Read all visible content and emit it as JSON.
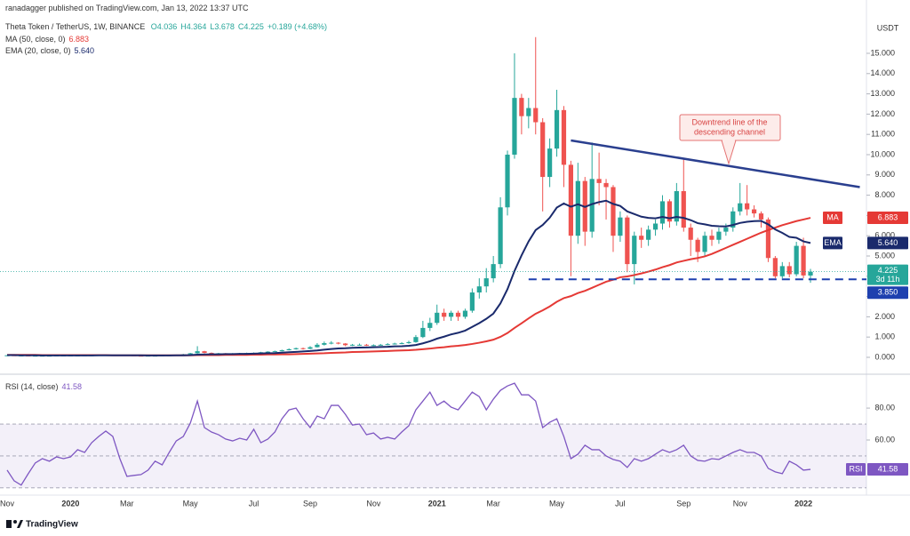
{
  "header": {
    "published": "ranadagger published on TradingView.com, Jan 13, 2022 13:37 UTC",
    "symbol": "Theta Token / TetherUS, 1W, BINANCE",
    "ohlc": [
      "O4.036",
      "H4.364",
      "L3.678",
      "C4.225",
      "+0.189 (+4.68%)"
    ]
  },
  "footer": {
    "logo": "TradingView"
  },
  "chart_data": [
    {
      "type": "candlestick",
      "unit": "USDT",
      "up_color": "#26a69a",
      "down_color": "#ef5350",
      "categories": [
        "Nov",
        null,
        null,
        null,
        null,
        null,
        null,
        null,
        null,
        "2020",
        null,
        null,
        null,
        null,
        null,
        null,
        null,
        "Mar",
        null,
        null,
        null,
        null,
        null,
        null,
        null,
        null,
        "May",
        null,
        null,
        null,
        null,
        null,
        null,
        null,
        null,
        "Jul",
        null,
        null,
        null,
        null,
        null,
        null,
        null,
        "Sep",
        null,
        null,
        null,
        null,
        null,
        null,
        null,
        null,
        "Nov",
        null,
        null,
        null,
        null,
        null,
        null,
        null,
        null,
        "2021",
        null,
        null,
        null,
        null,
        null,
        null,
        null,
        "Mar",
        null,
        null,
        null,
        null,
        null,
        null,
        null,
        null,
        "May",
        null,
        null,
        null,
        null,
        null,
        null,
        null,
        null,
        "Jul",
        null,
        null,
        null,
        null,
        null,
        null,
        null,
        null,
        "Sep",
        null,
        null,
        null,
        null,
        null,
        null,
        null,
        "Nov",
        null,
        null,
        null,
        null,
        null,
        null,
        null,
        null,
        "2022",
        null
      ],
      "candles": {
        "open": [
          0.1,
          0.1,
          0.09,
          0.09,
          0.08,
          0.08,
          0.08,
          0.08,
          0.09,
          0.09,
          0.09,
          0.09,
          0.1,
          0.1,
          0.11,
          0.12,
          0.12,
          0.11,
          0.1,
          0.08,
          0.07,
          0.08,
          0.08,
          0.09,
          0.1,
          0.12,
          0.15,
          0.2,
          0.3,
          0.22,
          0.2,
          0.2,
          0.19,
          0.19,
          0.2,
          0.21,
          0.22,
          0.25,
          0.28,
          0.3,
          0.35,
          0.4,
          0.45,
          0.42,
          0.5,
          0.62,
          0.7,
          0.72,
          0.68,
          0.6,
          0.62,
          0.62,
          0.6,
          0.6,
          0.62,
          0.65,
          0.68,
          0.7,
          0.75,
          1.0,
          1.45,
          1.7,
          2.2,
          2.0,
          2.2,
          2.0,
          2.3,
          3.2,
          3.5,
          3.9,
          4.6,
          7.4,
          10.0,
          12.8,
          11.9,
          12.3,
          11.6,
          8.9,
          10.3,
          12.2,
          9.5,
          6.0,
          8.7,
          6.2,
          8.8,
          8.6,
          8.4,
          6.0,
          6.9,
          4.6,
          6.0,
          5.8,
          6.3,
          6.6,
          7.7,
          6.7,
          8.2,
          6.4,
          5.8,
          5.2,
          6.0,
          5.8,
          6.2,
          6.4,
          7.2,
          7.6,
          7.3,
          7.1,
          6.8,
          4.9,
          4.0,
          4.5,
          4.1,
          5.5,
          4.036
        ],
        "high": [
          0.11,
          0.1,
          0.1,
          0.09,
          0.09,
          0.09,
          0.09,
          0.1,
          0.1,
          0.1,
          0.1,
          0.11,
          0.11,
          0.12,
          0.13,
          0.13,
          0.12,
          0.12,
          0.1,
          0.09,
          0.09,
          0.09,
          0.1,
          0.11,
          0.13,
          0.17,
          0.22,
          0.55,
          0.32,
          0.24,
          0.22,
          0.21,
          0.21,
          0.22,
          0.23,
          0.24,
          0.27,
          0.3,
          0.33,
          0.38,
          0.44,
          0.48,
          0.48,
          0.55,
          0.7,
          0.78,
          0.8,
          0.75,
          0.7,
          0.66,
          0.68,
          0.66,
          0.64,
          0.66,
          0.7,
          0.72,
          0.75,
          0.82,
          1.1,
          1.8,
          1.95,
          2.6,
          2.4,
          2.3,
          2.3,
          2.4,
          3.4,
          3.9,
          4.4,
          5.0,
          7.9,
          10.2,
          15.0,
          13.0,
          12.8,
          15.8,
          11.8,
          10.8,
          13.2,
          12.4,
          9.7,
          9.6,
          8.9,
          10.6,
          10.1,
          8.8,
          8.5,
          7.2,
          7.0,
          6.2,
          6.4,
          6.5,
          6.8,
          8.0,
          7.8,
          8.6,
          9.8,
          6.6,
          5.9,
          6.2,
          6.3,
          6.4,
          6.6,
          7.4,
          8.6,
          8.5,
          7.5,
          7.2,
          6.9,
          5.0,
          4.7,
          4.7,
          5.7,
          5.9,
          4.364
        ],
        "low": [
          0.09,
          0.09,
          0.08,
          0.08,
          0.07,
          0.07,
          0.07,
          0.07,
          0.08,
          0.08,
          0.08,
          0.08,
          0.09,
          0.09,
          0.1,
          0.11,
          0.1,
          0.09,
          0.07,
          0.05,
          0.06,
          0.07,
          0.07,
          0.08,
          0.09,
          0.11,
          0.14,
          0.18,
          0.2,
          0.18,
          0.18,
          0.17,
          0.17,
          0.18,
          0.19,
          0.2,
          0.21,
          0.24,
          0.27,
          0.29,
          0.34,
          0.38,
          0.38,
          0.4,
          0.48,
          0.58,
          0.64,
          0.64,
          0.55,
          0.56,
          0.58,
          0.56,
          0.56,
          0.58,
          0.6,
          0.63,
          0.65,
          0.67,
          0.72,
          0.95,
          1.3,
          1.6,
          1.8,
          1.8,
          1.8,
          1.9,
          2.2,
          2.9,
          3.2,
          3.7,
          4.4,
          7.0,
          9.8,
          11.0,
          11.3,
          11.0,
          7.2,
          8.4,
          9.9,
          8.4,
          4.0,
          5.6,
          5.5,
          5.9,
          7.5,
          6.8,
          5.2,
          5.7,
          4.2,
          3.6,
          5.4,
          5.5,
          6.0,
          6.3,
          6.4,
          6.5,
          6.2,
          5.0,
          4.7,
          5.0,
          5.5,
          5.6,
          6.0,
          6.2,
          7.0,
          7.0,
          6.9,
          6.4,
          4.7,
          3.9,
          3.9,
          3.95,
          4.0,
          3.9,
          3.678
        ],
        "close": [
          0.1,
          0.09,
          0.09,
          0.08,
          0.08,
          0.08,
          0.08,
          0.09,
          0.09,
          0.09,
          0.09,
          0.1,
          0.1,
          0.11,
          0.12,
          0.12,
          0.11,
          0.1,
          0.08,
          0.07,
          0.08,
          0.08,
          0.09,
          0.1,
          0.12,
          0.15,
          0.2,
          0.3,
          0.22,
          0.2,
          0.2,
          0.19,
          0.19,
          0.2,
          0.21,
          0.22,
          0.25,
          0.28,
          0.3,
          0.35,
          0.4,
          0.45,
          0.42,
          0.5,
          0.62,
          0.7,
          0.72,
          0.68,
          0.6,
          0.62,
          0.62,
          0.6,
          0.6,
          0.62,
          0.65,
          0.68,
          0.7,
          0.75,
          1.0,
          1.45,
          1.7,
          2.2,
          2.0,
          2.2,
          2.0,
          2.3,
          3.2,
          3.5,
          3.9,
          4.6,
          7.4,
          10.0,
          12.8,
          11.9,
          12.3,
          11.6,
          8.9,
          10.3,
          12.2,
          9.5,
          6.0,
          8.7,
          6.2,
          8.8,
          8.6,
          8.4,
          6.0,
          6.9,
          4.6,
          6.0,
          5.8,
          6.3,
          6.6,
          7.7,
          6.7,
          8.2,
          6.4,
          5.8,
          5.2,
          6.0,
          5.8,
          6.2,
          6.4,
          7.2,
          7.6,
          7.3,
          7.1,
          6.8,
          4.9,
          4.0,
          4.5,
          4.1,
          5.5,
          4.04,
          4.225
        ],
        "last_label": "4.225",
        "countdown": "3d 11h"
      },
      "series": [
        {
          "name": "MA (50, close, 0)",
          "tag": "MA",
          "color": "#e53935",
          "value_label": "6.883",
          "values": [
            0.12,
            0.12,
            0.12,
            0.12,
            0.12,
            0.11,
            0.11,
            0.11,
            0.11,
            0.11,
            0.11,
            0.11,
            0.11,
            0.11,
            0.11,
            0.1,
            0.1,
            0.1,
            0.1,
            0.1,
            0.1,
            0.1,
            0.1,
            0.1,
            0.1,
            0.1,
            0.1,
            0.11,
            0.11,
            0.11,
            0.11,
            0.12,
            0.12,
            0.12,
            0.12,
            0.13,
            0.13,
            0.14,
            0.14,
            0.15,
            0.15,
            0.16,
            0.17,
            0.18,
            0.19,
            0.2,
            0.22,
            0.23,
            0.24,
            0.26,
            0.27,
            0.28,
            0.29,
            0.3,
            0.31,
            0.33,
            0.34,
            0.35,
            0.37,
            0.4,
            0.43,
            0.47,
            0.5,
            0.54,
            0.57,
            0.61,
            0.66,
            0.72,
            0.79,
            0.87,
            1.01,
            1.2,
            1.45,
            1.68,
            1.92,
            2.15,
            2.32,
            2.51,
            2.74,
            2.92,
            3.02,
            3.17,
            3.28,
            3.43,
            3.58,
            3.73,
            3.83,
            3.95,
            3.99,
            4.06,
            4.14,
            4.23,
            4.33,
            4.45,
            4.55,
            4.68,
            4.76,
            4.84,
            4.9,
            4.98,
            5.1,
            5.25,
            5.4,
            5.55,
            5.7,
            5.85,
            6.0,
            6.15,
            6.28,
            6.4,
            6.52,
            6.62,
            6.72,
            6.8,
            6.883
          ]
        },
        {
          "name": "EMA (20, close, 0)",
          "tag": "EMA",
          "color": "#1a2a6c",
          "value_label": "5.640",
          "values": [
            0.11,
            0.11,
            0.1,
            0.1,
            0.1,
            0.09,
            0.09,
            0.09,
            0.09,
            0.09,
            0.09,
            0.09,
            0.09,
            0.1,
            0.1,
            0.1,
            0.1,
            0.1,
            0.1,
            0.1,
            0.09,
            0.09,
            0.09,
            0.09,
            0.1,
            0.1,
            0.11,
            0.13,
            0.14,
            0.15,
            0.15,
            0.16,
            0.16,
            0.17,
            0.17,
            0.18,
            0.19,
            0.2,
            0.21,
            0.23,
            0.25,
            0.27,
            0.29,
            0.31,
            0.34,
            0.38,
            0.41,
            0.44,
            0.45,
            0.47,
            0.48,
            0.49,
            0.5,
            0.51,
            0.52,
            0.54,
            0.55,
            0.57,
            0.61,
            0.69,
            0.79,
            0.92,
            1.02,
            1.13,
            1.21,
            1.32,
            1.5,
            1.69,
            1.9,
            2.16,
            2.66,
            3.36,
            4.26,
            5.03,
            5.72,
            6.28,
            6.53,
            6.89,
            7.39,
            7.59,
            7.43,
            7.55,
            7.42,
            7.56,
            7.66,
            7.73,
            7.57,
            7.47,
            7.2,
            7.07,
            6.94,
            6.88,
            6.86,
            6.93,
            6.86,
            6.93,
            6.88,
            6.77,
            6.62,
            6.56,
            6.49,
            6.47,
            6.46,
            6.53,
            6.63,
            6.69,
            6.72,
            6.73,
            6.56,
            6.31,
            6.14,
            5.94,
            5.9,
            5.72,
            5.64
          ]
        }
      ],
      "downtrend_line": {
        "start": [
          80,
          10.7
        ],
        "end": [
          121,
          8.4
        ],
        "color": "#2a3f8f"
      },
      "annotation": [
        "Downtrend line of the",
        "descending channel"
      ],
      "support_line": {
        "value": 3.85,
        "label": "3.850",
        "start": 74,
        "color": "#1e40af"
      },
      "ylim": [
        -0.79,
        17.28
      ],
      "yticks": [
        {
          "value": 0,
          "label": "0.000"
        },
        {
          "value": 1,
          "label": "1.000"
        },
        {
          "value": 2,
          "label": "2.000"
        },
        {
          "value": 3,
          "label": "3.000"
        },
        {
          "value": 4,
          "label": "4.000"
        },
        {
          "value": 5,
          "label": "5.000"
        },
        {
          "value": 6,
          "label": "6.000"
        },
        {
          "value": 7,
          "label": "7.000"
        },
        {
          "value": 8,
          "label": "8.000"
        },
        {
          "value": 9,
          "label": "9.000"
        },
        {
          "value": 10,
          "label": "10.000"
        },
        {
          "value": 11,
          "label": "11.000"
        },
        {
          "value": 12,
          "label": "12.000"
        },
        {
          "value": 13,
          "label": "13.000"
        },
        {
          "value": 14,
          "label": "14.000"
        },
        {
          "value": 15,
          "label": "15.000"
        }
      ]
    },
    {
      "type": "line",
      "name": "RSI (14, close)",
      "tag": "RSI",
      "color": "#7e57c2",
      "value_label": "41.58",
      "values": [
        41.1,
        34.4,
        31.7,
        38.9,
        45.6,
        48.3,
        46.7,
        49.4,
        48.3,
        49.4,
        53.9,
        52.2,
        58.3,
        62.2,
        65.6,
        62.2,
        48.3,
        37.2,
        37.8,
        38.3,
        41.1,
        46.7,
        44.4,
        52.2,
        59.4,
        62.2,
        70.6,
        84.4,
        67.8,
        65.0,
        63.3,
        60.6,
        59.4,
        61.1,
        60.0,
        66.7,
        58.3,
        60.6,
        65.0,
        73.3,
        78.9,
        80.0,
        73.3,
        67.8,
        75.0,
        73.3,
        81.7,
        81.7,
        76.1,
        69.4,
        70.0,
        63.3,
        64.4,
        60.6,
        61.7,
        60.6,
        65.0,
        68.9,
        78.9,
        84.4,
        90.0,
        81.7,
        84.4,
        80.6,
        78.9,
        84.4,
        90.0,
        87.2,
        78.9,
        85.6,
        91.1,
        93.9,
        95.6,
        88.3,
        88.3,
        84.4,
        67.8,
        71.1,
        73.3,
        62.2,
        48.3,
        51.1,
        56.7,
        53.9,
        53.9,
        50.0,
        47.8,
        46.7,
        42.8,
        48.3,
        46.7,
        48.3,
        51.1,
        53.9,
        52.2,
        53.9,
        56.7,
        50.0,
        47.2,
        46.7,
        48.3,
        47.8,
        50.0,
        52.2,
        53.9,
        52.2,
        52.2,
        50.0,
        42.2,
        40.0,
        38.9,
        46.7,
        44.4,
        41.1,
        41.58
      ],
      "levels": [
        30,
        50,
        70
      ],
      "ylim": [
        26,
        99
      ],
      "yticks": [
        {
          "value": 60,
          "label": "60.00"
        },
        {
          "value": 80,
          "label": "80.00"
        }
      ]
    }
  ]
}
